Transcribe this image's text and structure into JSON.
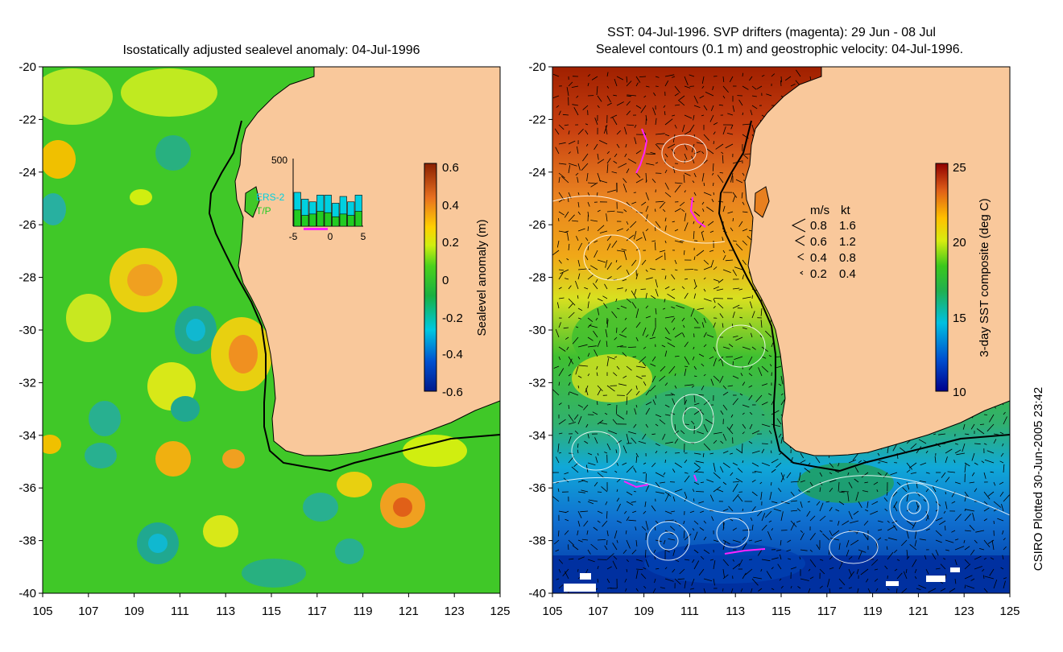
{
  "left_panel": {
    "title": "Isostatically adjusted sealevel anomaly: 04-Jul-1996",
    "colorbar_label": "Sealevel anomaly (m)",
    "colorbar_ticks": [
      "0.6",
      "0.4",
      "0.2",
      "0",
      "-0.2",
      "-0.4",
      "-0.6"
    ],
    "inset": {
      "ytick": "500",
      "xticks": [
        "-5",
        "0",
        "5"
      ],
      "legend": [
        "ERS-2",
        "T/P"
      ],
      "ers2_bars": [
        250,
        200,
        180,
        230,
        230,
        170,
        220,
        180,
        230
      ],
      "tp_bars": [
        120,
        80,
        90,
        110,
        100,
        70,
        90,
        80,
        110
      ]
    },
    "colors": {
      "land": "#f9c89b",
      "legend_ers2": "#00d0e0",
      "legend_tp": "#22cc22"
    }
  },
  "right_panel": {
    "title_line1": "SST: 04-Jul-1996. SVP drifters (magenta): 29 Jun - 08 Jul",
    "title_line2": "Sealevel contours (0.1 m) and geostrophic velocity: 04-Jul-1996.",
    "colorbar_label": "3-day SST composite (deg C)",
    "colorbar_ticks": [
      "25",
      "20",
      "15",
      "10"
    ],
    "velocity_legend": {
      "header": [
        "m/s",
        "kt"
      ],
      "rows": [
        [
          "0.8",
          "1.6"
        ],
        [
          "0.6",
          "1.2"
        ],
        [
          "0.4",
          "0.8"
        ],
        [
          "0.2",
          "0.4"
        ]
      ]
    },
    "colors": {
      "land": "#f9c89b",
      "drifter": "#ff22ff"
    }
  },
  "axes": {
    "lat_ticks": [
      "-20",
      "-22",
      "-24",
      "-26",
      "-28",
      "-30",
      "-32",
      "-34",
      "-36",
      "-38",
      "-40"
    ],
    "lon_ticks": [
      "105",
      "107",
      "109",
      "111",
      "113",
      "115",
      "117",
      "119",
      "121",
      "123",
      "125"
    ]
  },
  "footer": {
    "credit": "CSIRO Plotted 30-Jun-2005 23:42"
  }
}
